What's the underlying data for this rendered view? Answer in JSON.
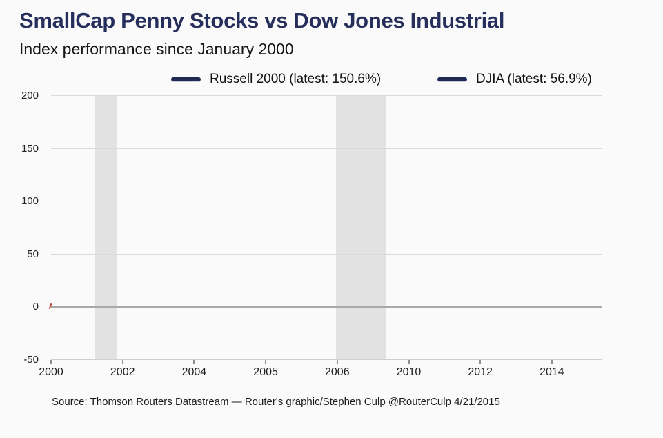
{
  "page": {
    "background": "#fafafa"
  },
  "header": {
    "title": "SmallCap Penny Stocks vs Dow Jones Industrial",
    "subtitle": "Index performance since January 2000"
  },
  "legend": {
    "items": [
      {
        "label": "Russell 2000 (latest: 150.6%)",
        "swatch_color": "#232a52"
      },
      {
        "label": "DJIA (latest: 56.9%)",
        "swatch_color": "#232a52"
      }
    ]
  },
  "footer": {
    "source": "Source: Thomson Routers Datastream — Router's graphic/Stephen Culp @RouterCulp 4/21/2015"
  },
  "colors": {
    "title_navy": "#262f5c",
    "legend_swatch": "#232a52",
    "gridline": "#d9d9d9",
    "zero_line": "#a8a8a8",
    "recession_band": "#e2e2e2",
    "series_start_marker": "#b0402f",
    "background": "#fafafa"
  },
  "chart_data": {
    "type": "line",
    "title": "SmallCap Penny Stocks vs Dow Jones Industrial",
    "subtitle": "Index performance since January 2000",
    "xlabel": "",
    "ylabel": "",
    "ylim": [
      -50,
      200
    ],
    "yticks": [
      200,
      150,
      100,
      50,
      0,
      -50
    ],
    "xticks": [
      "2000",
      "2002",
      "2004",
      "2005",
      "2006",
      "2010",
      "2012",
      "2014"
    ],
    "grid": "horizontal",
    "legend_position": "top",
    "zero_line": {
      "value": 0,
      "thick": true,
      "color": "#a8a8a8"
    },
    "shaded_bands": [
      {
        "x_start_frac": 0.079,
        "x_end_frac": 0.12,
        "color": "#e2e2e2"
      },
      {
        "x_start_frac": 0.517,
        "x_end_frac": 0.607,
        "color": "#e2e2e2"
      }
    ],
    "series": [
      {
        "name": "Russell 2000",
        "latest_pct": 150.6,
        "color": "#232a52",
        "visible_points": [
          [
            "2000",
            0
          ]
        ]
      },
      {
        "name": "DJIA",
        "latest_pct": 56.9,
        "color": "#232a52",
        "visible_points": [
          [
            "2000",
            0
          ]
        ]
      }
    ],
    "note": "Only the start of the series is drawn (small red marker at 0 in Jan 2000); line paths not yet rendered."
  }
}
